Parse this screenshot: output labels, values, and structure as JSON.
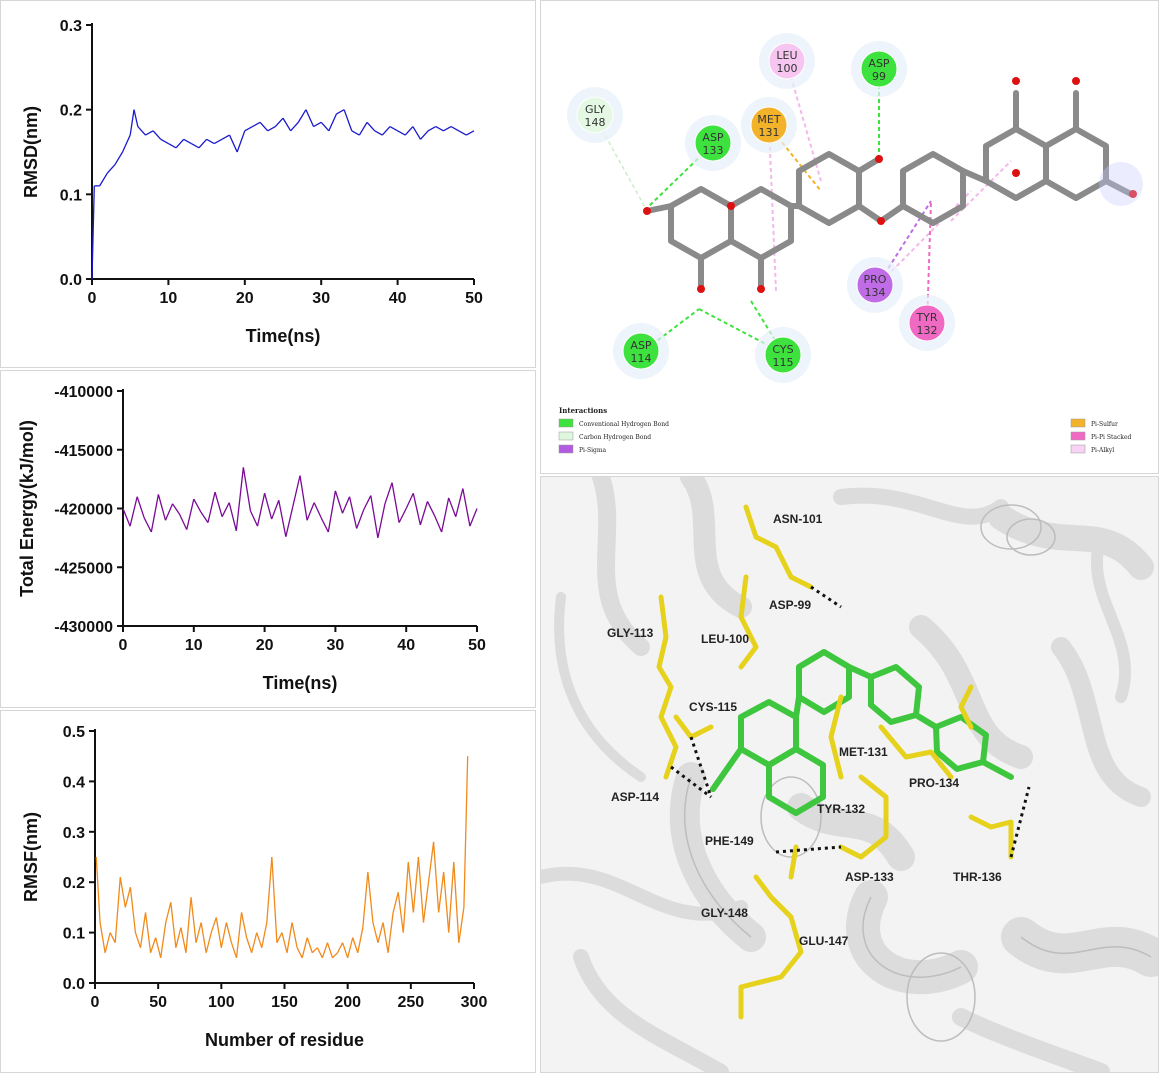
{
  "chart_data": [
    {
      "type": "line",
      "xlabel": "Time(ns)",
      "ylabel": "RMSD(nm)",
      "xlim": [
        0,
        50
      ],
      "ylim": [
        0.0,
        0.3
      ],
      "xticks": [
        "0",
        "10",
        "20",
        "30",
        "40",
        "50"
      ],
      "yticks": [
        "0.0",
        "0.1",
        "0.2",
        "0.3"
      ],
      "color": "#1a1acc",
      "series": [
        {
          "x": [
            0,
            0.3,
            1,
            2,
            3,
            4,
            5,
            5.5,
            6,
            7,
            8,
            9,
            10,
            11,
            12,
            13,
            14,
            15,
            16,
            17,
            18,
            19,
            20,
            21,
            22,
            23,
            24,
            25,
            26,
            27,
            28,
            29,
            30,
            31,
            32,
            33,
            34,
            35,
            36,
            37,
            38,
            39,
            40,
            41,
            42,
            43,
            44,
            45,
            46,
            47,
            48,
            49,
            50
          ],
          "values": [
            0.0,
            0.11,
            0.11,
            0.125,
            0.135,
            0.15,
            0.17,
            0.2,
            0.18,
            0.17,
            0.175,
            0.165,
            0.16,
            0.155,
            0.165,
            0.16,
            0.155,
            0.165,
            0.16,
            0.165,
            0.17,
            0.15,
            0.175,
            0.18,
            0.185,
            0.175,
            0.18,
            0.19,
            0.175,
            0.185,
            0.2,
            0.18,
            0.185,
            0.175,
            0.195,
            0.2,
            0.175,
            0.17,
            0.185,
            0.175,
            0.17,
            0.18,
            0.175,
            0.17,
            0.18,
            0.165,
            0.175,
            0.18,
            0.175,
            0.18,
            0.175,
            0.17,
            0.175
          ]
        }
      ]
    },
    {
      "type": "line",
      "xlabel": "Time(ns)",
      "ylabel": "Total Energy(kJ/mol)",
      "xlim": [
        0,
        50
      ],
      "ylim": [
        -430000,
        -410000
      ],
      "xticks": [
        "0",
        "10",
        "20",
        "30",
        "40",
        "50"
      ],
      "yticks": [
        "-430000",
        "-425000",
        "-420000",
        "-415000",
        "-410000"
      ],
      "color": "#7a0a96",
      "series": [
        {
          "x": [
            0,
            1,
            2,
            3,
            4,
            5,
            6,
            7,
            8,
            9,
            10,
            11,
            12,
            13,
            14,
            15,
            16,
            17,
            18,
            19,
            20,
            21,
            22,
            23,
            24,
            25,
            26,
            27,
            28,
            29,
            30,
            31,
            32,
            33,
            34,
            35,
            36,
            37,
            38,
            39,
            40,
            41,
            42,
            43,
            44,
            45,
            46,
            47,
            48,
            49,
            50
          ],
          "values": [
            -420000,
            -421500,
            -419000,
            -420800,
            -422000,
            -418800,
            -421000,
            -419600,
            -420500,
            -421800,
            -419200,
            -420300,
            -421200,
            -418600,
            -420700,
            -419500,
            -421900,
            -416500,
            -420200,
            -421500,
            -418700,
            -420900,
            -419300,
            -422400,
            -419800,
            -417200,
            -421000,
            -419500,
            -420800,
            -422000,
            -418500,
            -420400,
            -419000,
            -421700,
            -420100,
            -418900,
            -422500,
            -419600,
            -417800,
            -421200,
            -420000,
            -418700,
            -421400,
            -419400,
            -420600,
            -422000,
            -419100,
            -420700,
            -418300,
            -421500,
            -420000
          ]
        }
      ]
    },
    {
      "type": "line",
      "xlabel": "Number of residue",
      "ylabel": "RMSF(nm)",
      "xlim": [
        0,
        300
      ],
      "ylim": [
        0.0,
        0.5
      ],
      "xticks": [
        "0",
        "50",
        "100",
        "150",
        "200",
        "250",
        "300"
      ],
      "yticks": [
        "0.0",
        "0.1",
        "0.2",
        "0.3",
        "0.4",
        "0.5"
      ],
      "color": "#f08a1a",
      "series": [
        {
          "x": [
            1,
            4,
            8,
            12,
            16,
            20,
            24,
            28,
            32,
            36,
            40,
            44,
            48,
            52,
            56,
            60,
            64,
            68,
            72,
            76,
            80,
            84,
            88,
            92,
            96,
            100,
            104,
            108,
            112,
            116,
            120,
            124,
            128,
            132,
            136,
            140,
            144,
            148,
            152,
            156,
            160,
            164,
            168,
            172,
            176,
            180,
            184,
            188,
            192,
            196,
            200,
            204,
            208,
            212,
            216,
            220,
            224,
            228,
            232,
            236,
            240,
            244,
            248,
            252,
            256,
            260,
            264,
            268,
            272,
            276,
            280,
            284,
            288,
            292,
            295
          ],
          "values": [
            0.25,
            0.12,
            0.06,
            0.1,
            0.08,
            0.21,
            0.15,
            0.19,
            0.1,
            0.07,
            0.14,
            0.06,
            0.09,
            0.05,
            0.12,
            0.16,
            0.07,
            0.11,
            0.06,
            0.17,
            0.08,
            0.12,
            0.06,
            0.1,
            0.13,
            0.07,
            0.12,
            0.08,
            0.05,
            0.14,
            0.09,
            0.06,
            0.1,
            0.07,
            0.12,
            0.25,
            0.08,
            0.1,
            0.06,
            0.12,
            0.07,
            0.05,
            0.09,
            0.06,
            0.07,
            0.05,
            0.08,
            0.05,
            0.06,
            0.08,
            0.05,
            0.09,
            0.06,
            0.11,
            0.22,
            0.12,
            0.08,
            0.12,
            0.06,
            0.14,
            0.18,
            0.1,
            0.24,
            0.14,
            0.25,
            0.12,
            0.2,
            0.28,
            0.14,
            0.22,
            0.1,
            0.24,
            0.08,
            0.15,
            0.45
          ]
        }
      ]
    }
  ],
  "interaction_diagram": {
    "residues": [
      {
        "name": "LEU",
        "num": "100",
        "color": "#f7c6f0"
      },
      {
        "name": "ASP",
        "num": "99",
        "color": "#3ee23e"
      },
      {
        "name": "GLY",
        "num": "148",
        "color": "#e4f8e4"
      },
      {
        "name": "MET",
        "num": "131",
        "color": "#f2b22a"
      },
      {
        "name": "ASP",
        "num": "133",
        "color": "#3ee23e"
      },
      {
        "name": "PRO",
        "num": "134",
        "color": "#c06ce6"
      },
      {
        "name": "TYR",
        "num": "132",
        "color": "#f06ac4"
      },
      {
        "name": "ASP",
        "num": "114",
        "color": "#3ee23e"
      },
      {
        "name": "CYS",
        "num": "115",
        "color": "#3ee23e"
      }
    ],
    "legend": {
      "title": "Interactions",
      "items": [
        {
          "label": "Conventional Hydrogen Bond",
          "color": "#3ee23e"
        },
        {
          "label": "Carbon Hydrogen Bond",
          "color": "#dff6df"
        },
        {
          "label": "Pi-Sigma",
          "color": "#b05be0"
        },
        {
          "label": "Pi-Sulfur",
          "color": "#f2b22a"
        },
        {
          "label": "Pi-Pi Stacked",
          "color": "#f06ac4"
        },
        {
          "label": "Pi-Alkyl",
          "color": "#f7d2f2"
        }
      ]
    }
  },
  "structure_3d": {
    "labels": [
      "ASN-101",
      "ASP-99",
      "LEU-100",
      "GLY-113",
      "CYS-115",
      "MET-131",
      "PRO-134",
      "ASP-114",
      "TYR-132",
      "PHE-149",
      "ASP-133",
      "THR-136",
      "GLY-148",
      "GLU-147"
    ]
  }
}
